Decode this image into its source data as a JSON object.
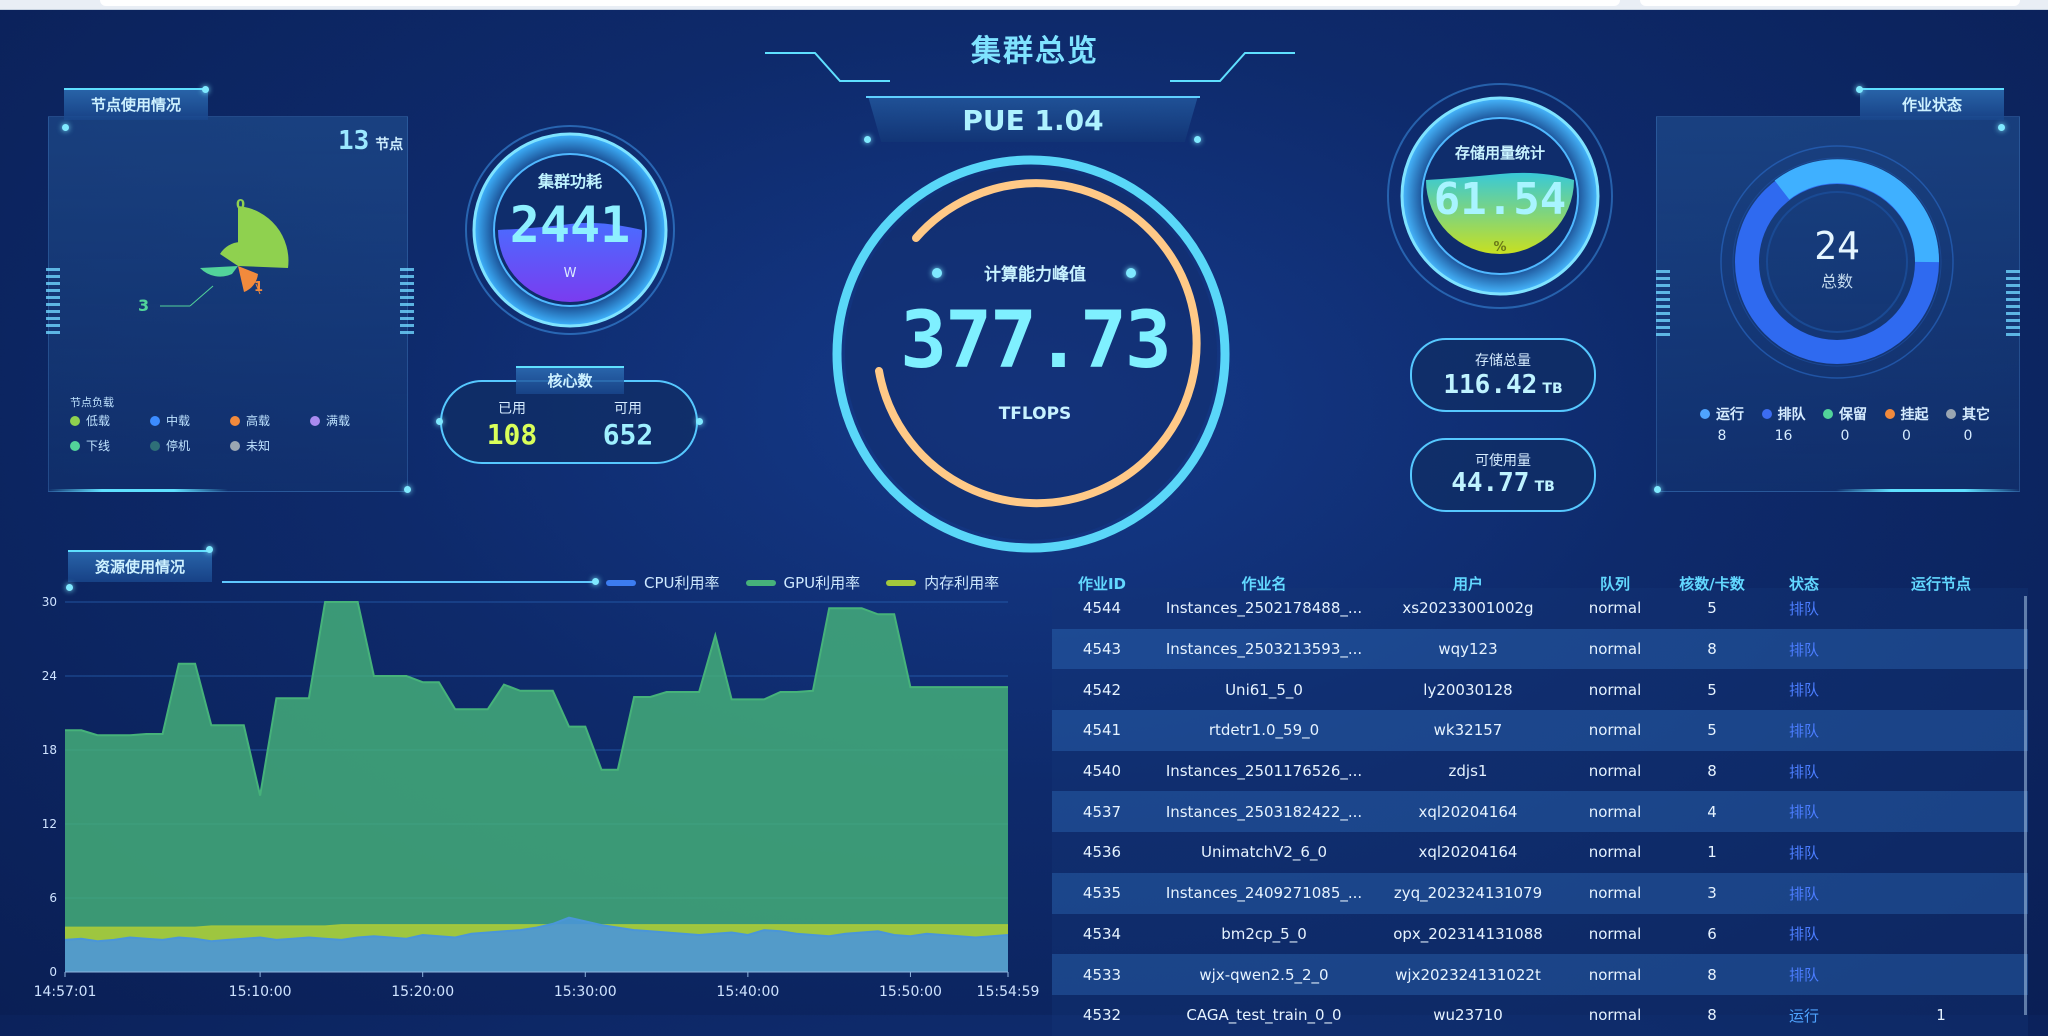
{
  "title": "集群总览",
  "pue": "PUE 1.04",
  "node_panel": {
    "title": "节点使用情况",
    "count": "13",
    "count_unit": "节点",
    "small_labels": [
      "0",
      "3",
      "1"
    ],
    "legend_title": "节点负载",
    "legend": [
      {
        "label": "低载",
        "color": "#8fd14f"
      },
      {
        "label": "中载",
        "color": "#3c8cff"
      },
      {
        "label": "高载",
        "color": "#f28a3c"
      },
      {
        "label": "满载",
        "color": "#a98bf0"
      },
      {
        "label": "下线",
        "color": "#52d39a"
      },
      {
        "label": "停机",
        "color": "#2e6f78"
      },
      {
        "label": "未知",
        "color": "#9aa6b2"
      }
    ]
  },
  "power": {
    "title": "集群功耗",
    "value": "2441",
    "unit": "W"
  },
  "cores": {
    "title": "核心数",
    "used_label": "已用",
    "used_value": "108",
    "avail_label": "可用",
    "avail_value": "652"
  },
  "peak": {
    "title": "计算能力峰值",
    "value": "377.73",
    "unit": "TFLOPS"
  },
  "storage": {
    "title": "存储用量统计",
    "percent": "61.54",
    "percent_unit": "%",
    "total_label": "存储总量",
    "total_value": "116.42",
    "total_unit": "TB",
    "avail_label": "可使用量",
    "avail_value": "44.77",
    "avail_unit": "TB"
  },
  "jobs_panel": {
    "title": "作业状态",
    "total": "24",
    "total_label": "总数",
    "legend": [
      {
        "label": "运行",
        "value": "8",
        "color": "#4fa4ff"
      },
      {
        "label": "排队",
        "value": "16",
        "color": "#3c6cf0"
      },
      {
        "label": "保留",
        "value": "0",
        "color": "#52d39a"
      },
      {
        "label": "挂起",
        "value": "0",
        "color": "#f28a3c"
      },
      {
        "label": "其它",
        "value": "0",
        "color": "#9aa6b2"
      }
    ]
  },
  "resource_panel": {
    "title": "资源使用情况",
    "legend": [
      {
        "label": "CPU利用率",
        "color": "#3c7cf0"
      },
      {
        "label": "GPU利用率",
        "color": "#46b27a"
      },
      {
        "label": "内存利用率",
        "color": "#a3c83c"
      }
    ]
  },
  "job_table": {
    "headers": [
      "作业ID",
      "作业名",
      "用户",
      "队列",
      "核数/卡数",
      "状态",
      "运行节点"
    ],
    "rows": [
      [
        "4544",
        "Instances_2502178488_...",
        "xs20233001002g",
        "normal",
        "5",
        "排队",
        ""
      ],
      [
        "4543",
        "Instances_2503213593_...",
        "wqy123",
        "normal",
        "8",
        "排队",
        ""
      ],
      [
        "4542",
        "Uni61_5_0",
        "ly20030128",
        "normal",
        "5",
        "排队",
        ""
      ],
      [
        "4541",
        "rtdetr1.0_59_0",
        "wk32157",
        "normal",
        "5",
        "排队",
        ""
      ],
      [
        "4540",
        "Instances_2501176526_...",
        "zdjs1",
        "normal",
        "8",
        "排队",
        ""
      ],
      [
        "4537",
        "Instances_2503182422_...",
        "xql20204164",
        "normal",
        "4",
        "排队",
        ""
      ],
      [
        "4536",
        "UnimatchV2_6_0",
        "xql20204164",
        "normal",
        "1",
        "排队",
        ""
      ],
      [
        "4535",
        "Instances_2409271085_...",
        "zyq_202324131079",
        "normal",
        "3",
        "排队",
        ""
      ],
      [
        "4534",
        "bm2cp_5_0",
        "opx_202314131088",
        "normal",
        "6",
        "排队",
        ""
      ],
      [
        "4533",
        "wjx-qwen2.5_2_0",
        "wjx202324131022t",
        "normal",
        "8",
        "排队",
        ""
      ],
      [
        "4532",
        "CAGA_test_train_0_0",
        "wu23710",
        "normal",
        "8",
        "运行",
        "1"
      ]
    ]
  },
  "chart_data": {
    "type": "area",
    "x": [
      "14:57:01",
      "14:58",
      "14:59",
      "15:00",
      "15:01",
      "15:02",
      "15:03",
      "15:04",
      "15:05",
      "15:06",
      "15:07",
      "15:08",
      "15:09",
      "15:10",
      "15:11",
      "15:12",
      "15:13",
      "15:14",
      "15:15",
      "15:16",
      "15:17",
      "15:18",
      "15:19",
      "15:20",
      "15:21",
      "15:22",
      "15:23",
      "15:24",
      "15:25",
      "15:26",
      "15:27",
      "15:28",
      "15:29",
      "15:30",
      "15:31",
      "15:32",
      "15:33",
      "15:34",
      "15:35",
      "15:36",
      "15:37",
      "15:38",
      "15:39",
      "15:40",
      "15:41",
      "15:42",
      "15:43",
      "15:44",
      "15:45",
      "15:46",
      "15:47",
      "15:48",
      "15:49",
      "15:50",
      "15:51",
      "15:52",
      "15:53",
      "15:54",
      "15:54:59"
    ],
    "x_tick_labels": [
      "14:57:01",
      "15:10:00",
      "15:20:00",
      "15:30:00",
      "15:40:00",
      "15:50:00",
      "15:54:59"
    ],
    "y_ticks": [
      "0",
      "6",
      "12",
      "18",
      "24",
      "30"
    ],
    "ylim": [
      0,
      30
    ],
    "series": [
      {
        "name": "CPU利用率",
        "values": [
          2.6,
          2.7,
          2.5,
          2.6,
          2.8,
          2.7,
          2.6,
          2.8,
          2.7,
          2.5,
          2.6,
          2.7,
          2.8,
          2.6,
          2.7,
          2.8,
          2.7,
          2.6,
          2.8,
          2.9,
          2.8,
          2.7,
          3.0,
          2.9,
          2.8,
          3.1,
          3.2,
          3.3,
          3.4,
          3.6,
          3.9,
          4.4,
          4.1,
          3.8,
          3.6,
          3.4,
          3.3,
          3.2,
          3.1,
          3.0,
          3.1,
          3.2,
          3.0,
          3.4,
          3.3,
          3.1,
          3.0,
          2.9,
          3.1,
          3.2,
          3.3,
          3.0,
          2.9,
          3.1,
          3.0,
          2.9,
          2.8,
          2.9,
          3.0
        ]
      },
      {
        "name": "GPU利用率",
        "values": [
          19.6,
          19.6,
          19.2,
          19.2,
          19.2,
          19.3,
          19.3,
          25.0,
          25.0,
          20.0,
          20.0,
          20.0,
          14.3,
          22.2,
          22.2,
          22.2,
          30.0,
          30.0,
          30.0,
          24.0,
          24.0,
          24.0,
          23.5,
          23.5,
          21.3,
          21.3,
          21.3,
          23.3,
          22.8,
          22.8,
          22.8,
          19.9,
          19.9,
          16.4,
          16.4,
          22.3,
          22.3,
          22.7,
          22.7,
          22.7,
          27.3,
          22.1,
          22.1,
          22.1,
          22.7,
          22.7,
          22.8,
          29.5,
          29.5,
          29.5,
          29.0,
          29.0,
          23.1,
          23.1,
          23.1,
          23.1,
          23.1,
          23.1,
          23.1
        ]
      },
      {
        "name": "内存利用率",
        "values": [
          3.6,
          3.6,
          3.6,
          3.6,
          3.6,
          3.6,
          3.6,
          3.6,
          3.6,
          3.7,
          3.7,
          3.7,
          3.7,
          3.7,
          3.7,
          3.7,
          3.7,
          3.8,
          3.8,
          3.8,
          3.8,
          3.8,
          3.8,
          3.8,
          3.8,
          3.8,
          3.8,
          3.8,
          3.8,
          3.8,
          3.8,
          3.8,
          3.8,
          3.8,
          3.8,
          3.8,
          3.8,
          3.8,
          3.8,
          3.8,
          3.8,
          3.8,
          3.8,
          3.8,
          3.8,
          3.8,
          3.8,
          3.8,
          3.8,
          3.8,
          3.8,
          3.8,
          3.8,
          3.8,
          3.8,
          3.8,
          3.8,
          3.8,
          3.8
        ]
      }
    ],
    "colors": {
      "cpu": "#3c7cf0",
      "gpu": "#46b27a",
      "mem": "#a3c83c"
    }
  }
}
